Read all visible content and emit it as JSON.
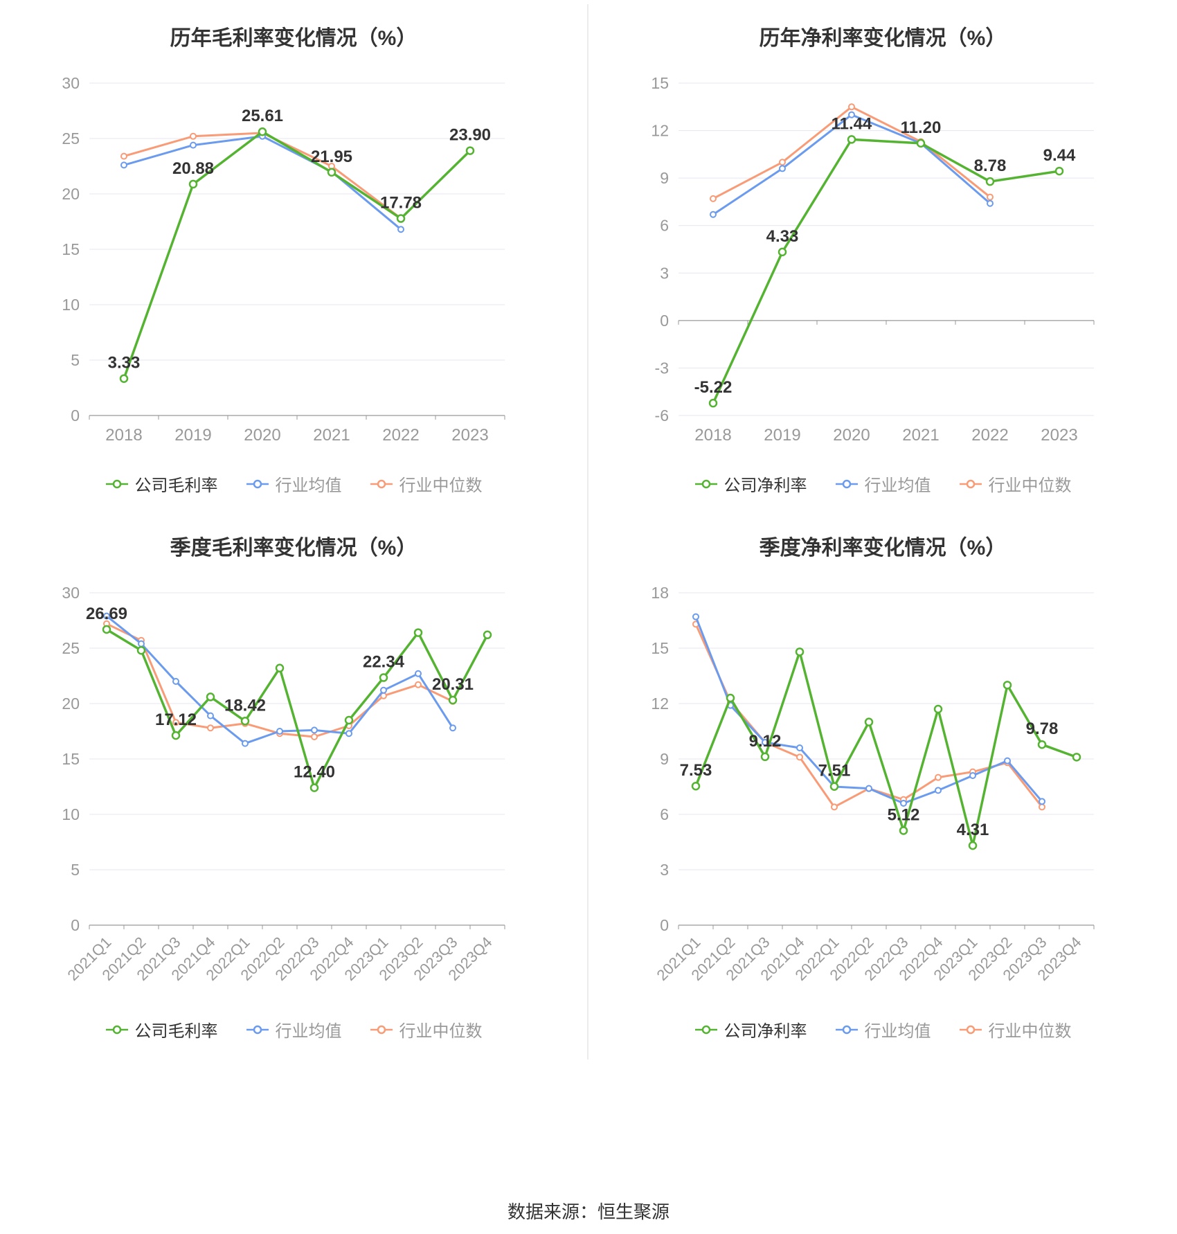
{
  "colors": {
    "company_green": "#55b332",
    "industry_avg_blue": "#6b9bee",
    "industry_median_orange": "#f89b76",
    "grid_line": "#e5e5f0",
    "axis_line": "#999999",
    "tick_label": "#999999",
    "data_label": "#333333",
    "divider": "#ececec"
  },
  "footer": {
    "source_label": "数据来源：恒生聚源"
  },
  "chart_data": [
    {
      "type": "line",
      "title": "历年毛利率变化情况（%）",
      "categories": [
        "2018",
        "2019",
        "2020",
        "2021",
        "2022",
        "2023"
      ],
      "xlabel": "",
      "ylabel": "",
      "ylim": [
        0,
        30
      ],
      "y_ticks": [
        0,
        5,
        10,
        15,
        20,
        25,
        30
      ],
      "rotate_x_labels": false,
      "grid": true,
      "legend_position": "bottom",
      "series": [
        {
          "name": "公司毛利率",
          "color": "#55b332",
          "values": [
            3.33,
            20.88,
            25.61,
            21.95,
            17.78,
            23.9
          ],
          "point_labels": [
            "3.33",
            "20.88",
            "25.61",
            "21.95",
            "17.78",
            "23.90"
          ]
        },
        {
          "name": "行业均值",
          "color": "#6b9bee",
          "values": [
            22.6,
            24.4,
            25.2,
            22.0,
            16.8
          ]
        },
        {
          "name": "行业中位数",
          "color": "#f89b76",
          "values": [
            23.4,
            25.2,
            25.5,
            22.5,
            17.8
          ]
        }
      ]
    },
    {
      "type": "line",
      "title": "历年净利率变化情况（%）",
      "categories": [
        "2018",
        "2019",
        "2020",
        "2021",
        "2022",
        "2023"
      ],
      "xlabel": "",
      "ylabel": "",
      "ylim": [
        -6,
        15
      ],
      "y_ticks": [
        -6,
        -3,
        0,
        3,
        6,
        9,
        12,
        15
      ],
      "rotate_x_labels": false,
      "grid": true,
      "legend_position": "bottom",
      "series": [
        {
          "name": "公司净利率",
          "color": "#55b332",
          "values": [
            -5.22,
            4.33,
            11.44,
            11.2,
            8.78,
            9.44
          ],
          "point_labels": [
            "-5.22",
            "4.33",
            "11.44",
            "11.20",
            "8.78",
            "9.44"
          ]
        },
        {
          "name": "行业均值",
          "color": "#6b9bee",
          "values": [
            6.7,
            9.6,
            13.0,
            11.2,
            7.4
          ]
        },
        {
          "name": "行业中位数",
          "color": "#f89b76",
          "values": [
            7.7,
            10.0,
            13.5,
            11.3,
            7.8
          ]
        }
      ]
    },
    {
      "type": "line",
      "title": "季度毛利率变化情况（%）",
      "categories": [
        "2021Q1",
        "2021Q2",
        "2021Q3",
        "2021Q4",
        "2022Q1",
        "2022Q2",
        "2022Q3",
        "2022Q4",
        "2023Q1",
        "2023Q2",
        "2023Q3",
        "2023Q4"
      ],
      "xlabel": "",
      "ylabel": "",
      "ylim": [
        0,
        30
      ],
      "y_ticks": [
        0,
        5,
        10,
        15,
        20,
        25,
        30
      ],
      "rotate_x_labels": true,
      "grid": true,
      "legend_position": "bottom",
      "series": [
        {
          "name": "公司毛利率",
          "color": "#55b332",
          "values": [
            26.69,
            24.8,
            17.12,
            20.6,
            18.42,
            23.2,
            12.4,
            18.5,
            22.34,
            26.4,
            20.31,
            26.2
          ],
          "point_labels": [
            "26.69",
            "",
            "17.12",
            "",
            "18.42",
            "",
            "12.40",
            "",
            "22.34",
            "",
            "20.31",
            ""
          ]
        },
        {
          "name": "行业均值",
          "color": "#6b9bee",
          "values": [
            27.9,
            25.4,
            22.0,
            18.9,
            16.4,
            17.5,
            17.6,
            17.3,
            21.2,
            22.7,
            17.8
          ]
        },
        {
          "name": "行业中位数",
          "color": "#f89b76",
          "values": [
            27.2,
            25.7,
            18.3,
            17.8,
            18.2,
            17.3,
            17.0,
            18.0,
            20.7,
            21.7,
            20.2
          ]
        }
      ]
    },
    {
      "type": "line",
      "title": "季度净利率变化情况（%）",
      "categories": [
        "2021Q1",
        "2021Q2",
        "2021Q3",
        "2021Q4",
        "2022Q1",
        "2022Q2",
        "2022Q3",
        "2022Q4",
        "2023Q1",
        "2023Q2",
        "2023Q3",
        "2023Q4"
      ],
      "xlabel": "",
      "ylabel": "",
      "ylim": [
        0,
        18
      ],
      "y_ticks": [
        0,
        3,
        6,
        9,
        12,
        15,
        18
      ],
      "rotate_x_labels": true,
      "grid": true,
      "legend_position": "bottom",
      "series": [
        {
          "name": "公司净利率",
          "color": "#55b332",
          "values": [
            7.53,
            12.3,
            9.12,
            14.8,
            7.51,
            11.0,
            5.12,
            11.7,
            4.31,
            13.0,
            9.78,
            9.1
          ],
          "point_labels": [
            "7.53",
            "",
            "9.12",
            "",
            "7.51",
            "",
            "5.12",
            "",
            "4.31",
            "",
            "9.78",
            ""
          ]
        },
        {
          "name": "行业均值",
          "color": "#6b9bee",
          "values": [
            16.7,
            11.9,
            9.9,
            9.6,
            7.5,
            7.4,
            6.6,
            7.3,
            8.1,
            8.9,
            6.7
          ]
        },
        {
          "name": "行业中位数",
          "color": "#f89b76",
          "values": [
            16.3,
            12.1,
            9.9,
            9.1,
            6.4,
            7.4,
            6.8,
            8.0,
            8.3,
            8.8,
            6.4
          ]
        }
      ]
    }
  ]
}
